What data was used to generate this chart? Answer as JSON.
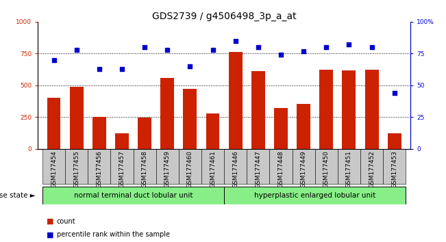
{
  "title": "GDS2739 / g4506498_3p_a_at",
  "samples": [
    "GSM177454",
    "GSM177455",
    "GSM177456",
    "GSM177457",
    "GSM177458",
    "GSM177459",
    "GSM177460",
    "GSM177461",
    "GSM177446",
    "GSM177447",
    "GSM177448",
    "GSM177449",
    "GSM177450",
    "GSM177451",
    "GSM177452",
    "GSM177453"
  ],
  "counts": [
    400,
    490,
    250,
    120,
    245,
    560,
    470,
    280,
    760,
    610,
    320,
    355,
    620,
    615,
    625,
    120
  ],
  "percentiles": [
    70,
    78,
    63,
    63,
    80,
    78,
    65,
    78,
    85,
    80,
    74,
    77,
    80,
    82,
    80,
    44
  ],
  "group1_label": "normal terminal duct lobular unit",
  "group2_label": "hyperplastic enlarged lobular unit",
  "group1_count": 8,
  "group2_count": 8,
  "ylim_left": [
    0,
    1000
  ],
  "ylim_right": [
    0,
    100
  ],
  "yticks_left": [
    0,
    250,
    500,
    750,
    1000
  ],
  "ytick_labels_left": [
    "0",
    "250",
    "500",
    "750",
    "1000"
  ],
  "yticks_right": [
    0,
    25,
    50,
    75,
    100
  ],
  "ytick_labels_right": [
    "0",
    "25",
    "50",
    "75",
    "100%"
  ],
  "bar_color": "#cc2200",
  "dot_color": "#0000cc",
  "bg_plot": "#ffffff",
  "bg_xtick": "#c8c8c8",
  "bg_group": "#88ee88",
  "disease_state_label": "disease state",
  "legend_count_label": "count",
  "legend_pct_label": "percentile rank within the sample",
  "title_fontsize": 10,
  "tick_fontsize": 6.5,
  "legend_fontsize": 7
}
